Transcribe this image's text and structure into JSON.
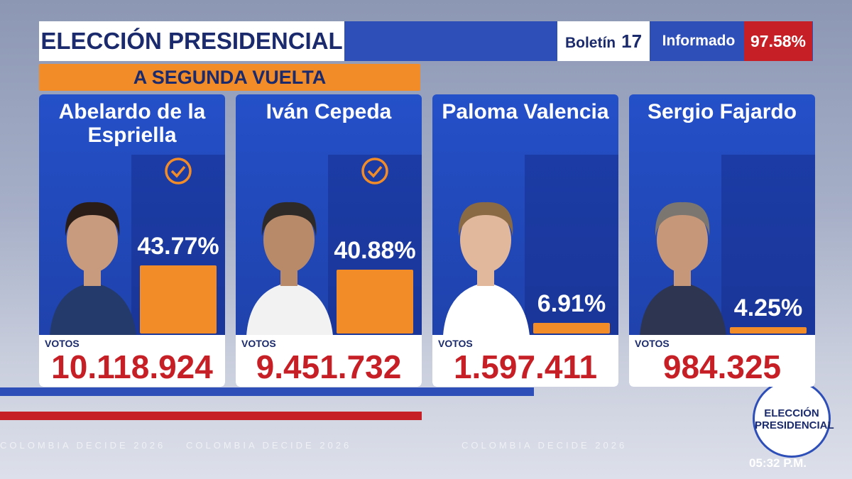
{
  "chart_data": {
    "type": "bar",
    "title": "ELECCIÓN PRESIDENCIAL",
    "subtitle": "A SEGUNDA VUELTA",
    "bulletin_label": "Boletín",
    "bulletin": "17",
    "reported_label": "Informado",
    "reported": "97.58%",
    "categories": [
      "Abelardo de la Espriella",
      "Iván Cepeda",
      "Paloma Valencia",
      "Sergio Fajardo"
    ],
    "values": [
      43.77,
      40.88,
      6.91,
      4.25
    ],
    "value_labels": [
      "43.77%",
      "40.88%",
      "6.91%",
      "4.25%"
    ],
    "color": "#f28c28",
    "qualified": [
      true,
      true,
      false,
      false
    ],
    "votes_label": "VOTOS",
    "votes": [
      "10.118.924",
      "9.451.732",
      "1.597.411",
      "984.325"
    ],
    "footer": "COLOMBIA DECIDE 2026",
    "logo": "ELECCIÓN PRESIDENCIAL",
    "time": "05:32 P.M."
  }
}
